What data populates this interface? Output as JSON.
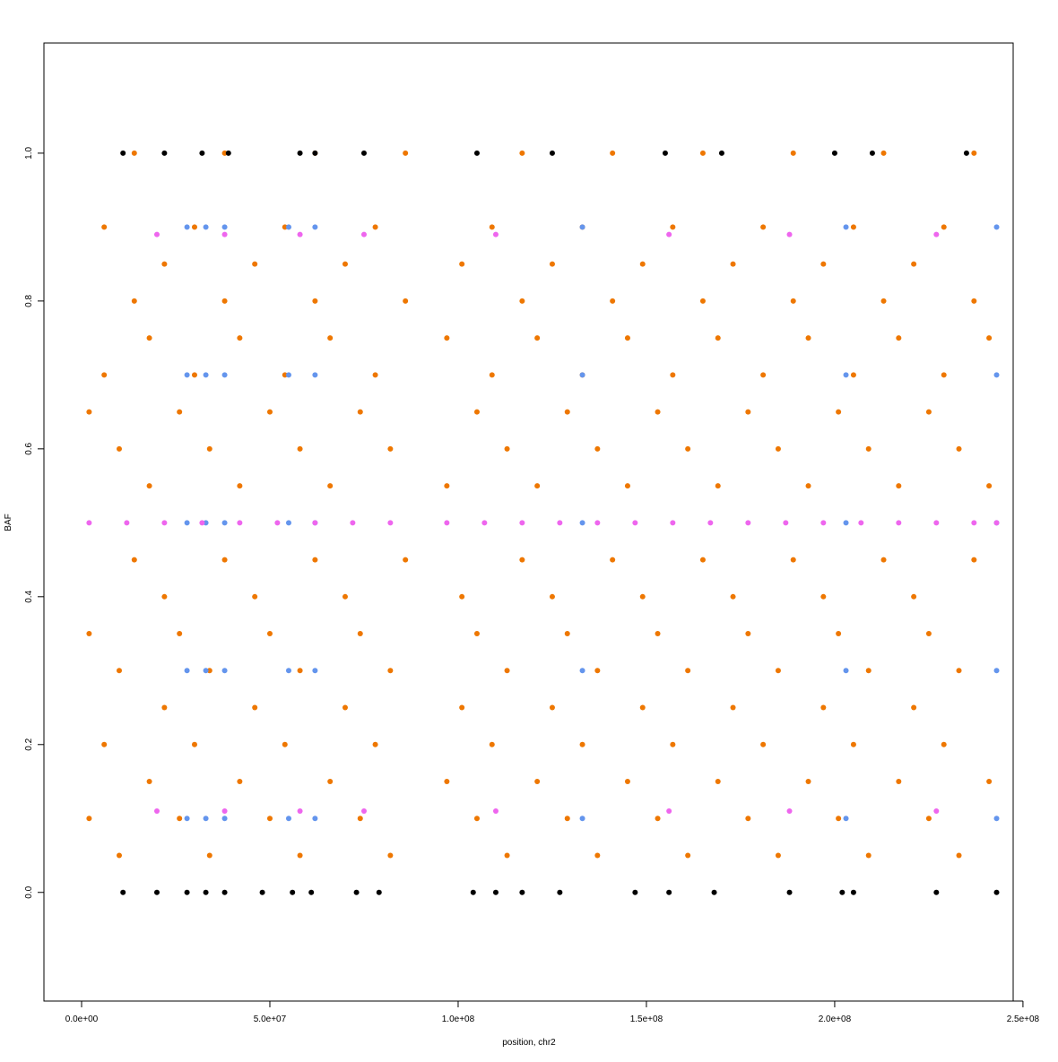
{
  "chart_data": {
    "type": "scatter",
    "xlabel": "position, chr2",
    "ylabel": "BAF",
    "xlim": [
      -10000000,
      247400000
    ],
    "ylim": [
      -0.147,
      1.149
    ],
    "xticks": [
      {
        "value": 0,
        "label": "0.0e+00"
      },
      {
        "value": 50000000,
        "label": "5.0e+07"
      },
      {
        "value": 100000000,
        "label": "1.0e+08"
      },
      {
        "value": 150000000,
        "label": "1.5e+08"
      },
      {
        "value": 200000000,
        "label": "2.0e+08"
      },
      {
        "value": 250000000,
        "label": "2.5e+08"
      }
    ],
    "yticks": [
      {
        "value": 0,
        "label": "0.0"
      },
      0.2,
      0.4,
      0.6,
      0.8,
      {
        "value": 1,
        "label": "1.0"
      }
    ],
    "grid": false,
    "series": [
      {
        "color": "#ee7700",
        "x": [
          2000000.0,
          2000000.0,
          2000000.0,
          6000000.0,
          6000000.0,
          6000000.0,
          10000000.0,
          10000000.0,
          10000000.0,
          14000000.0,
          14000000.0,
          14000000.0,
          18000000.0,
          18000000.0,
          18000000.0,
          22000000.0,
          22000000.0,
          22000000.0,
          26000000.0,
          26000000.0,
          26000000.0,
          30000000.0,
          30000000.0,
          30000000.0,
          34000000.0,
          34000000.0,
          34000000.0,
          38000000.0,
          38000000.0,
          38000000.0,
          42000000.0,
          42000000.0,
          42000000.0,
          46000000.0,
          46000000.0,
          46000000.0,
          50000000.0,
          50000000.0,
          50000000.0,
          54000000.0,
          54000000.0,
          54000000.0,
          58000000.0,
          58000000.0,
          58000000.0,
          62000000.0,
          62000000.0,
          62000000.0,
          66000000.0,
          66000000.0,
          66000000.0,
          70000000.0,
          70000000.0,
          70000000.0,
          74000000.0,
          74000000.0,
          74000000.0,
          78000000.0,
          78000000.0,
          78000000.0,
          82000000.0,
          82000000.0,
          82000000.0,
          86000000.0,
          86000000.0,
          86000000.0,
          97000000.0,
          97000000.0,
          97000000.0,
          101000000.0,
          101000000.0,
          101000000.0,
          105000000.0,
          105000000.0,
          105000000.0,
          109000000.0,
          109000000.0,
          109000000.0,
          113000000.0,
          113000000.0,
          113000000.0,
          117000000.0,
          117000000.0,
          117000000.0,
          121000000.0,
          121000000.0,
          121000000.0,
          125000000.0,
          125000000.0,
          125000000.0,
          129000000.0,
          129000000.0,
          129000000.0,
          133000000.0,
          133000000.0,
          133000000.0,
          137000000.0,
          137000000.0,
          137000000.0,
          141000000.0,
          141000000.0,
          141000000.0,
          145000000.0,
          145000000.0,
          145000000.0,
          149000000.0,
          149000000.0,
          149000000.0,
          153000000.0,
          153000000.0,
          153000000.0,
          157000000.0,
          157000000.0,
          157000000.0,
          161000000.0,
          161000000.0,
          161000000.0,
          165000000.0,
          165000000.0,
          165000000.0,
          169000000.0,
          169000000.0,
          169000000.0,
          173000000.0,
          173000000.0,
          173000000.0,
          177000000.0,
          177000000.0,
          177000000.0,
          181000000.0,
          181000000.0,
          181000000.0,
          185000000.0,
          185000000.0,
          185000000.0,
          189000000.0,
          189000000.0,
          189000000.0,
          193000000.0,
          193000000.0,
          193000000.0,
          197000000.0,
          197000000.0,
          197000000.0,
          201000000.0,
          201000000.0,
          201000000.0,
          205000000.0,
          205000000.0,
          205000000.0,
          209000000.0,
          209000000.0,
          209000000.0,
          213000000.0,
          213000000.0,
          213000000.0,
          217000000.0,
          217000000.0,
          217000000.0,
          221000000.0,
          221000000.0,
          221000000.0,
          225000000.0,
          225000000.0,
          225000000.0,
          229000000.0,
          229000000.0,
          229000000.0,
          233000000.0,
          233000000.0,
          233000000.0,
          237000000.0,
          237000000.0,
          237000000.0,
          241000000.0,
          241000000.0,
          241000000.0
        ],
        "values": [
          0.1,
          0.35,
          0.65,
          0.2,
          0.7,
          0.9,
          0.05,
          0.3,
          0.6,
          0.45,
          0.8,
          1,
          0.15,
          0.55,
          0.75,
          0.25,
          0.4,
          0.85,
          0.1,
          0.35,
          0.65,
          0.2,
          0.7,
          0.9,
          0.05,
          0.3,
          0.6,
          0.45,
          0.8,
          1,
          0.15,
          0.55,
          0.75,
          0.25,
          0.4,
          0.85,
          0.1,
          0.35,
          0.65,
          0.2,
          0.7,
          0.9,
          0.05,
          0.3,
          0.6,
          0.45,
          0.8,
          1,
          0.15,
          0.55,
          0.75,
          0.25,
          0.4,
          0.85,
          0.1,
          0.35,
          0.65,
          0.2,
          0.7,
          0.9,
          0.05,
          0.3,
          0.6,
          0.45,
          0.8,
          1,
          0.15,
          0.55,
          0.75,
          0.25,
          0.4,
          0.85,
          0.1,
          0.35,
          0.65,
          0.2,
          0.7,
          0.9,
          0.05,
          0.3,
          0.6,
          0.45,
          0.8,
          1,
          0.15,
          0.55,
          0.75,
          0.25,
          0.4,
          0.85,
          0.1,
          0.35,
          0.65,
          0.2,
          0.7,
          0.9,
          0.05,
          0.3,
          0.6,
          0.45,
          0.8,
          1,
          0.15,
          0.55,
          0.75,
          0.25,
          0.4,
          0.85,
          0.1,
          0.35,
          0.65,
          0.2,
          0.7,
          0.9,
          0.05,
          0.3,
          0.6,
          0.45,
          0.8,
          1,
          0.15,
          0.55,
          0.75,
          0.25,
          0.4,
          0.85,
          0.1,
          0.35,
          0.65,
          0.2,
          0.7,
          0.9,
          0.05,
          0.3,
          0.6,
          0.45,
          0.8,
          1,
          0.15,
          0.55,
          0.75,
          0.25,
          0.4,
          0.85,
          0.1,
          0.35,
          0.65,
          0.2,
          0.7,
          0.9,
          0.05,
          0.3,
          0.6,
          0.45,
          0.8,
          1,
          0.15,
          0.55,
          0.75,
          0.25,
          0.4,
          0.85,
          0.1,
          0.35,
          0.65,
          0.2,
          0.7,
          0.9,
          0.05,
          0.3,
          0.6,
          0.45,
          0.8,
          1,
          0.15,
          0.55,
          0.75
        ]
      },
      {
        "color": "#6495ed",
        "x": [
          28000000.0,
          28000000.0,
          28000000.0,
          28000000.0,
          28000000.0,
          33000000.0,
          33000000.0,
          33000000.0,
          33000000.0,
          33000000.0,
          38000000.0,
          38000000.0,
          38000000.0,
          38000000.0,
          38000000.0,
          55000000.0,
          55000000.0,
          55000000.0,
          55000000.0,
          55000000.0,
          62000000.0,
          62000000.0,
          62000000.0,
          62000000.0,
          62000000.0,
          133000000.0,
          133000000.0,
          133000000.0,
          133000000.0,
          133000000.0,
          203000000.0,
          203000000.0,
          203000000.0,
          203000000.0,
          203000000.0,
          243000000.0,
          243000000.0,
          243000000.0,
          243000000.0,
          243000000.0
        ],
        "values": [
          0.1,
          0.3,
          0.5,
          0.7,
          0.9,
          0.1,
          0.3,
          0.5,
          0.7,
          0.9,
          0.1,
          0.3,
          0.5,
          0.7,
          0.9,
          0.1,
          0.3,
          0.5,
          0.7,
          0.9,
          0.1,
          0.3,
          0.5,
          0.7,
          0.9,
          0.1,
          0.3,
          0.5,
          0.7,
          0.9,
          0.1,
          0.3,
          0.5,
          0.7,
          0.9,
          0.1,
          0.3,
          0.5,
          0.7,
          0.9
        ]
      },
      {
        "color": "#ee66ee",
        "x": [
          2000000.0,
          12000000.0,
          22000000.0,
          32000000.0,
          42000000.0,
          52000000.0,
          62000000.0,
          72000000.0,
          82000000.0,
          97000000.0,
          107000000.0,
          117000000.0,
          127000000.0,
          137000000.0,
          147000000.0,
          157000000.0,
          167000000.0,
          177000000.0,
          187000000.0,
          197000000.0,
          207000000.0,
          217000000.0,
          227000000.0,
          237000000.0,
          243000000.0,
          20000000.0,
          38000000.0,
          58000000.0,
          75000000.0,
          110000000.0,
          156000000.0,
          188000000.0,
          227000000.0,
          20000000.0,
          38000000.0,
          58000000.0,
          75000000.0,
          110000000.0,
          156000000.0,
          188000000.0,
          227000000.0
        ],
        "values": [
          0.5,
          0.5,
          0.5,
          0.5,
          0.5,
          0.5,
          0.5,
          0.5,
          0.5,
          0.5,
          0.5,
          0.5,
          0.5,
          0.5,
          0.5,
          0.5,
          0.5,
          0.5,
          0.5,
          0.5,
          0.5,
          0.5,
          0.5,
          0.5,
          0.5,
          0.89,
          0.89,
          0.89,
          0.89,
          0.89,
          0.89,
          0.89,
          0.89,
          0.11,
          0.11,
          0.11,
          0.11,
          0.11,
          0.11,
          0.11,
          0.11
        ]
      },
      {
        "color": "#000000",
        "x": [
          11000000.0,
          20000000.0,
          28000000.0,
          33000000.0,
          38000000.0,
          48000000.0,
          56000000.0,
          61000000.0,
          73000000.0,
          79000000.0,
          104000000.0,
          110000000.0,
          117000000.0,
          127000000.0,
          147000000.0,
          156000000.0,
          168000000.0,
          188000000.0,
          202000000.0,
          205000000.0,
          227000000.0,
          243000000.0,
          11000000.0,
          22000000.0,
          32000000.0,
          39000000.0,
          58000000.0,
          62000000.0,
          75000000.0,
          105000000.0,
          125000000.0,
          155000000.0,
          170000000.0,
          200000000.0,
          210000000.0,
          235000000.0
        ],
        "values": [
          0,
          0,
          0,
          0,
          0,
          0,
          0,
          0,
          0,
          0,
          0,
          0,
          0,
          0,
          0,
          0,
          0,
          0,
          0,
          0,
          0,
          0,
          1,
          1,
          1,
          1,
          1,
          1,
          1,
          1,
          1,
          1,
          1,
          1,
          1,
          1
        ]
      }
    ]
  }
}
